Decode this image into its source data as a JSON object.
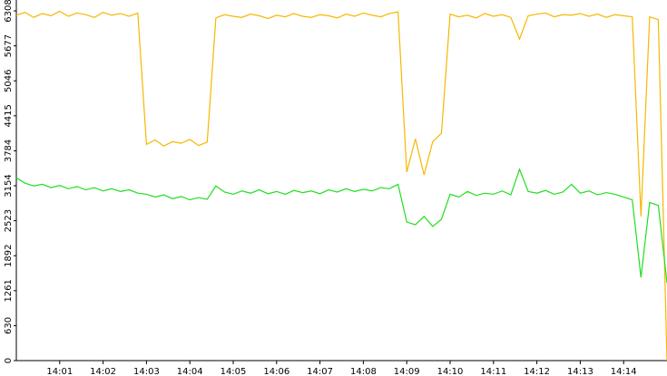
{
  "chart_data": {
    "type": "line",
    "x": [
      840.0,
      840.2,
      840.4,
      840.6,
      840.8,
      841.0,
      841.2,
      841.4,
      841.6,
      841.8,
      842.0,
      842.2,
      842.4,
      842.6,
      842.8,
      843.0,
      843.2,
      843.4,
      843.6,
      843.8,
      844.0,
      844.2,
      844.4,
      844.6,
      844.8,
      845.0,
      845.2,
      845.4,
      845.6,
      845.8,
      846.0,
      846.2,
      846.4,
      846.6,
      846.8,
      847.0,
      847.2,
      847.4,
      847.6,
      847.8,
      848.0,
      848.2,
      848.4,
      848.6,
      848.8,
      849.0,
      849.2,
      849.4,
      849.6,
      849.8,
      850.0,
      850.2,
      850.4,
      850.6,
      850.8,
      851.0,
      851.2,
      851.4,
      851.6,
      851.8,
      852.0,
      852.2,
      852.4,
      852.6,
      852.8,
      853.0,
      853.2,
      853.4,
      853.6,
      853.8,
      854.0,
      854.2,
      854.4,
      854.6,
      854.8,
      855.0
    ],
    "series": [
      {
        "color": "#f5b800",
        "values": [
          6230,
          6280,
          6190,
          6260,
          6220,
          6300,
          6210,
          6270,
          6240,
          6190,
          6280,
          6230,
          6260,
          6210,
          6270,
          3900,
          3980,
          3870,
          3950,
          3920,
          3990,
          3880,
          3940,
          6180,
          6240,
          6210,
          6190,
          6250,
          6220,
          6170,
          6230,
          6200,
          6260,
          6210,
          6190,
          6240,
          6220,
          6180,
          6250,
          6210,
          6270,
          6230,
          6200,
          6260,
          6290,
          3400,
          4000,
          3350,
          3950,
          4100,
          6250,
          6200,
          6230,
          6180,
          6260,
          6210,
          6240,
          6190,
          5800,
          6220,
          6250,
          6270,
          6200,
          6240,
          6230,
          6260,
          6210,
          6250,
          6190,
          6240,
          6220,
          6200,
          2600,
          6200,
          6150,
          0
        ]
      },
      {
        "color": "#22dd22",
        "values": [
          3300,
          3200,
          3150,
          3180,
          3120,
          3160,
          3100,
          3140,
          3080,
          3120,
          3060,
          3100,
          3050,
          3080,
          3020,
          3000,
          2950,
          2990,
          2920,
          2960,
          2900,
          2940,
          2910,
          3150,
          3040,
          3000,
          3060,
          3020,
          3080,
          3010,
          3050,
          3000,
          3070,
          3030,
          3060,
          3010,
          3080,
          3040,
          3100,
          3050,
          3090,
          3060,
          3120,
          3100,
          3180,
          2500,
          2450,
          2600,
          2420,
          2550,
          3000,
          2950,
          3050,
          2980,
          3020,
          3000,
          3060,
          2990,
          3450,
          3050,
          3020,
          3070,
          3000,
          3040,
          3180,
          3020,
          3060,
          2990,
          3030,
          3000,
          2950,
          2900,
          1500,
          2850,
          2800,
          1400
        ]
      }
    ],
    "xlim": [
      840,
      855
    ],
    "xticks": [
      {
        "value": 841,
        "label": "14:01"
      },
      {
        "value": 842,
        "label": "14:02"
      },
      {
        "value": 843,
        "label": "14:03"
      },
      {
        "value": 844,
        "label": "14:04"
      },
      {
        "value": 845,
        "label": "14:05"
      },
      {
        "value": 846,
        "label": "14:06"
      },
      {
        "value": 847,
        "label": "14:07"
      },
      {
        "value": 848,
        "label": "14:08"
      },
      {
        "value": 849,
        "label": "14:09"
      },
      {
        "value": 850,
        "label": "14:10"
      },
      {
        "value": 851,
        "label": "14:11"
      },
      {
        "value": 852,
        "label": "14:12"
      },
      {
        "value": 853,
        "label": "14:13"
      },
      {
        "value": 854,
        "label": "14:14"
      }
    ],
    "ylim": [
      0,
      6308
    ],
    "yticks": [
      0,
      630,
      1261,
      1892,
      2523,
      3154,
      3784,
      4415,
      5046,
      5677,
      6308
    ]
  }
}
